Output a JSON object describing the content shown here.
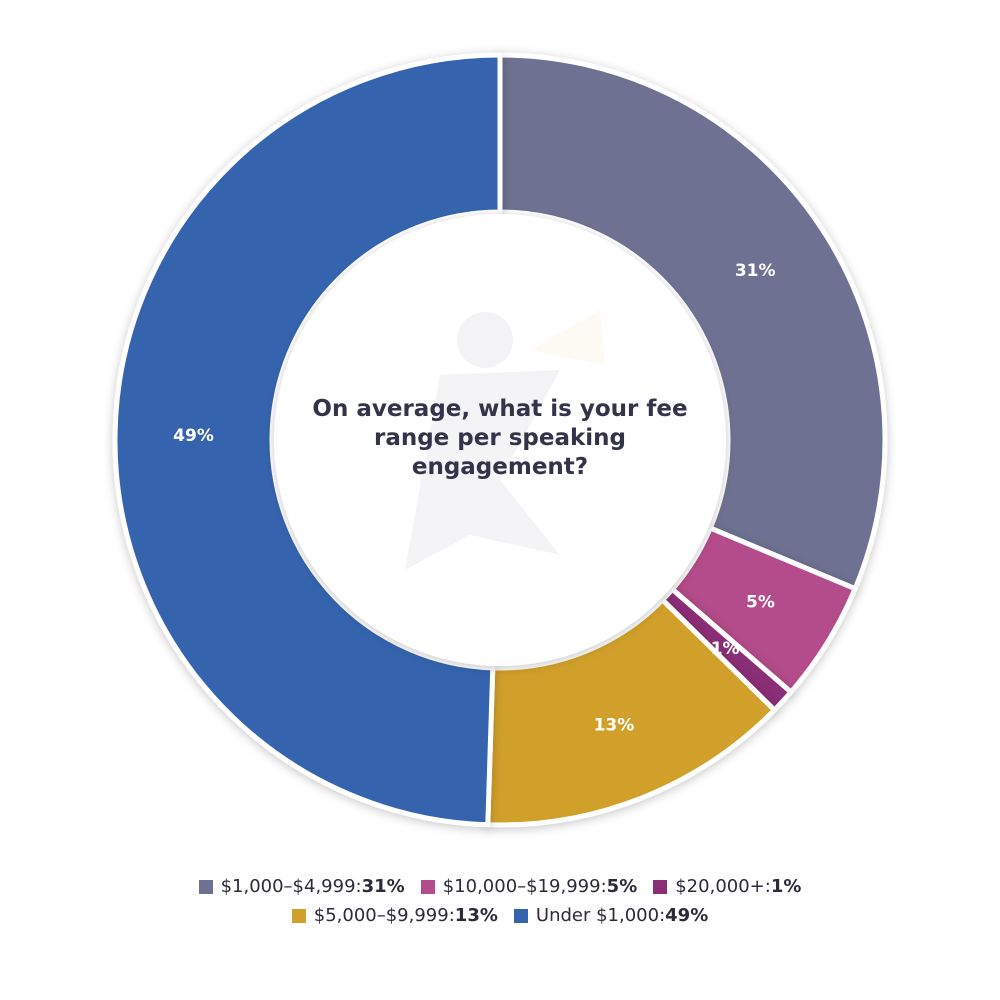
{
  "chart_data": {
    "type": "pie",
    "title": "On average, what is your fee range per speaking engagement?",
    "slices": [
      {
        "label": "$1,000–$4,999",
        "value": 31,
        "display": "31%",
        "color": "#6e7191"
      },
      {
        "label": "$10,000–$19,999",
        "value": 5,
        "display": "5%",
        "color": "#b44b8a"
      },
      {
        "label": "$20,000+",
        "value": 1,
        "display": "1%",
        "color": "#8a2f76"
      },
      {
        "label": "$5,000–$9,999",
        "value": 13,
        "display": "13%",
        "color": "#d1a02c"
      },
      {
        "label": "Under $1,000",
        "value": 49,
        "display": "49%",
        "color": "#3464ad"
      }
    ],
    "legend_position": "bottom",
    "legend_rows": [
      [
        {
          "label": "$1,000–$4,999",
          "sep": ": ",
          "value": "31%",
          "color": "#6e7191"
        },
        {
          "label": "$10,000–$19,999",
          "sep": ": ",
          "value": "5%",
          "color": "#b44b8a"
        },
        {
          "label": "$20,000+",
          "sep": ": ",
          "value": "1%",
          "color": "#8a2f76"
        }
      ],
      [
        {
          "label": "$5,000–$9,999",
          "sep": ": ",
          "value": "13%",
          "color": "#d1a02c"
        },
        {
          "label": "Under $1,000",
          "sep": ": ",
          "value": "49%",
          "color": "#3464ad"
        }
      ]
    ]
  }
}
